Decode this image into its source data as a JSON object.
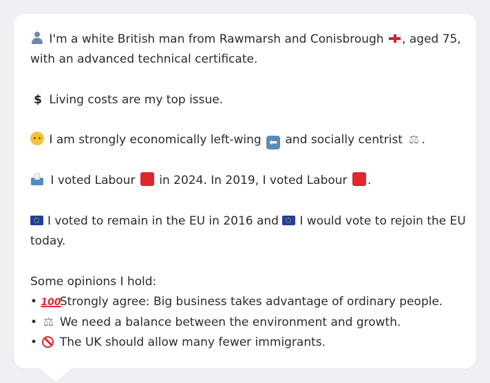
{
  "profile": {
    "intro_line1_a": "I'm a white British man from Rawmarsh and Conisbrough",
    "intro_line1_b": ", aged 75,",
    "intro_line2": "with an advanced technical certificate.",
    "top_issue": "Living costs are my top issue.",
    "ideology_a": "I am strongly economically left-wing",
    "ideology_b": "and socially centrist",
    "ideology_end": ".",
    "vote_a": "I voted Labour",
    "vote_b": "in 2024. In 2019, I voted Labour",
    "vote_end": ".",
    "eu_a": "I voted to remain in the EU in 2016 and",
    "eu_b": "I would vote to rejoin the EU",
    "eu_line2": "today.",
    "opinions_heading": "Some opinions I hold:",
    "opinions": [
      {
        "icon": "hundred-points-icon",
        "text": "Strongly agree: Big business takes advantage of ordinary people."
      },
      {
        "icon": "balance-scale-icon",
        "text": "We need a balance between the environment and growth."
      },
      {
        "icon": "no-entry-icon",
        "text": "The UK should allow many fewer immigrants."
      }
    ],
    "bullet": "•"
  },
  "colors": {
    "labour_red": "#e0262f",
    "eu_blue": "#1f3f9e",
    "card_bg": "#ffffff",
    "page_bg": "#eef0f3"
  }
}
